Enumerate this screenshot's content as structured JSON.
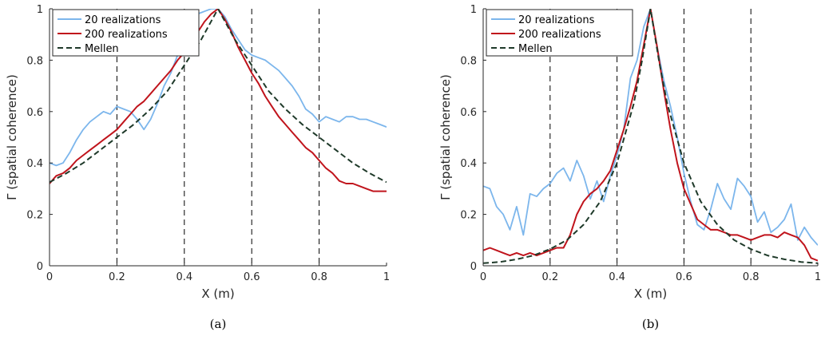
{
  "chart_data": [
    {
      "type": "line",
      "caption": "(a)",
      "xlabel": "X (m)",
      "ylabel": "Γ (spatial coherence)",
      "xlim": [
        0,
        1
      ],
      "ylim": [
        0,
        1
      ],
      "xticks": [
        "0",
        "0.2",
        "0.4",
        "0.6",
        "0.8",
        "1"
      ],
      "yticks": [
        "0",
        "0.2",
        "0.4",
        "0.6",
        "0.8",
        "1"
      ],
      "grid": false,
      "legend_position": "top-left",
      "vlines": [
        0.2,
        0.4,
        0.6,
        0.8
      ],
      "series": [
        {
          "name": "20 realizations",
          "color": "#7cb6ec",
          "style": "solid",
          "x": [
            0,
            0.02,
            0.04,
            0.06,
            0.08,
            0.1,
            0.12,
            0.14,
            0.16,
            0.18,
            0.2,
            0.22,
            0.24,
            0.26,
            0.28,
            0.3,
            0.32,
            0.34,
            0.36,
            0.38,
            0.4,
            0.42,
            0.44,
            0.46,
            0.48,
            0.5,
            0.52,
            0.54,
            0.56,
            0.58,
            0.6,
            0.62,
            0.64,
            0.66,
            0.68,
            0.7,
            0.72,
            0.74,
            0.76,
            0.78,
            0.8,
            0.82,
            0.84,
            0.86,
            0.88,
            0.9,
            0.92,
            0.94,
            0.96,
            0.98,
            1
          ],
          "y": [
            0.4,
            0.39,
            0.4,
            0.44,
            0.49,
            0.53,
            0.56,
            0.58,
            0.6,
            0.59,
            0.62,
            0.61,
            0.6,
            0.57,
            0.53,
            0.57,
            0.63,
            0.7,
            0.75,
            0.82,
            0.86,
            0.92,
            0.98,
            0.99,
            1.0,
            1.0,
            0.97,
            0.92,
            0.88,
            0.84,
            0.82,
            0.81,
            0.8,
            0.78,
            0.76,
            0.73,
            0.7,
            0.66,
            0.61,
            0.59,
            0.56,
            0.58,
            0.57,
            0.56,
            0.58,
            0.58,
            0.57,
            0.57,
            0.56,
            0.55,
            0.54
          ]
        },
        {
          "name": "200 realizations",
          "color": "#c0141c",
          "style": "solid",
          "x": [
            0,
            0.02,
            0.04,
            0.06,
            0.08,
            0.1,
            0.12,
            0.14,
            0.16,
            0.18,
            0.2,
            0.22,
            0.24,
            0.26,
            0.28,
            0.3,
            0.32,
            0.34,
            0.36,
            0.38,
            0.4,
            0.42,
            0.44,
            0.46,
            0.48,
            0.5,
            0.52,
            0.54,
            0.56,
            0.58,
            0.6,
            0.62,
            0.64,
            0.66,
            0.68,
            0.7,
            0.72,
            0.74,
            0.76,
            0.78,
            0.8,
            0.82,
            0.84,
            0.86,
            0.88,
            0.9,
            0.92,
            0.94,
            0.96,
            0.98,
            1
          ],
          "y": [
            0.32,
            0.35,
            0.36,
            0.38,
            0.41,
            0.43,
            0.45,
            0.47,
            0.49,
            0.51,
            0.53,
            0.56,
            0.59,
            0.62,
            0.64,
            0.67,
            0.7,
            0.73,
            0.76,
            0.8,
            0.83,
            0.87,
            0.91,
            0.95,
            0.98,
            1.0,
            0.96,
            0.91,
            0.85,
            0.8,
            0.75,
            0.71,
            0.66,
            0.62,
            0.58,
            0.55,
            0.52,
            0.49,
            0.46,
            0.44,
            0.41,
            0.38,
            0.36,
            0.33,
            0.32,
            0.32,
            0.31,
            0.3,
            0.29,
            0.29,
            0.29
          ]
        },
        {
          "name": "Mellen",
          "color": "#1f3a2a",
          "style": "dashed",
          "x": [
            0,
            0.05,
            0.1,
            0.15,
            0.2,
            0.25,
            0.3,
            0.35,
            0.4,
            0.45,
            0.5,
            0.55,
            0.6,
            0.65,
            0.7,
            0.75,
            0.8,
            0.85,
            0.9,
            0.95,
            1
          ],
          "y": [
            0.325,
            0.36,
            0.4,
            0.45,
            0.5,
            0.55,
            0.61,
            0.68,
            0.78,
            0.88,
            1.0,
            0.88,
            0.78,
            0.68,
            0.61,
            0.55,
            0.5,
            0.45,
            0.4,
            0.36,
            0.325
          ]
        }
      ]
    },
    {
      "type": "line",
      "caption": "(b)",
      "xlabel": "X (m)",
      "ylabel": "Γ (spatial coherence)",
      "xlim": [
        0,
        1
      ],
      "ylim": [
        0,
        1
      ],
      "xticks": [
        "0",
        "0.2",
        "0.4",
        "0.6",
        "0.8",
        "1"
      ],
      "yticks": [
        "0",
        "0.2",
        "0.4",
        "0.6",
        "0.8",
        "1"
      ],
      "grid": false,
      "legend_position": "top-left",
      "vlines": [
        0.2,
        0.4,
        0.6,
        0.8
      ],
      "series": [
        {
          "name": "20 realizations",
          "color": "#7cb6ec",
          "style": "solid",
          "x": [
            0,
            0.02,
            0.04,
            0.06,
            0.08,
            0.1,
            0.12,
            0.14,
            0.16,
            0.18,
            0.2,
            0.22,
            0.24,
            0.26,
            0.28,
            0.3,
            0.32,
            0.34,
            0.36,
            0.38,
            0.4,
            0.42,
            0.44,
            0.46,
            0.48,
            0.5,
            0.52,
            0.54,
            0.56,
            0.58,
            0.6,
            0.62,
            0.64,
            0.66,
            0.68,
            0.7,
            0.72,
            0.74,
            0.76,
            0.78,
            0.8,
            0.82,
            0.84,
            0.86,
            0.88,
            0.9,
            0.92,
            0.94,
            0.96,
            0.98,
            1
          ],
          "y": [
            0.31,
            0.3,
            0.23,
            0.2,
            0.14,
            0.23,
            0.12,
            0.28,
            0.27,
            0.3,
            0.32,
            0.36,
            0.38,
            0.33,
            0.41,
            0.35,
            0.26,
            0.33,
            0.25,
            0.35,
            0.43,
            0.53,
            0.73,
            0.8,
            0.93,
            1.0,
            0.85,
            0.72,
            0.62,
            0.5,
            0.36,
            0.25,
            0.16,
            0.14,
            0.22,
            0.32,
            0.26,
            0.22,
            0.34,
            0.31,
            0.27,
            0.17,
            0.21,
            0.13,
            0.15,
            0.18,
            0.24,
            0.1,
            0.15,
            0.11,
            0.08
          ]
        },
        {
          "name": "200 realizations",
          "color": "#c0141c",
          "style": "solid",
          "x": [
            0,
            0.02,
            0.04,
            0.06,
            0.08,
            0.1,
            0.12,
            0.14,
            0.16,
            0.18,
            0.2,
            0.22,
            0.24,
            0.26,
            0.28,
            0.3,
            0.32,
            0.34,
            0.36,
            0.38,
            0.4,
            0.42,
            0.44,
            0.46,
            0.48,
            0.5,
            0.52,
            0.54,
            0.56,
            0.58,
            0.6,
            0.62,
            0.64,
            0.66,
            0.68,
            0.7,
            0.72,
            0.74,
            0.76,
            0.78,
            0.8,
            0.82,
            0.84,
            0.86,
            0.88,
            0.9,
            0.92,
            0.94,
            0.96,
            0.98,
            1
          ],
          "y": [
            0.06,
            0.07,
            0.06,
            0.05,
            0.04,
            0.05,
            0.04,
            0.05,
            0.04,
            0.05,
            0.06,
            0.07,
            0.07,
            0.12,
            0.2,
            0.25,
            0.28,
            0.3,
            0.33,
            0.37,
            0.45,
            0.53,
            0.62,
            0.72,
            0.86,
            1.0,
            0.85,
            0.68,
            0.53,
            0.4,
            0.3,
            0.24,
            0.18,
            0.16,
            0.14,
            0.14,
            0.13,
            0.12,
            0.12,
            0.11,
            0.1,
            0.11,
            0.12,
            0.12,
            0.11,
            0.13,
            0.12,
            0.11,
            0.08,
            0.03,
            0.02
          ]
        },
        {
          "name": "Mellen",
          "color": "#1f3a2a",
          "style": "dashed",
          "x": [
            0,
            0.05,
            0.1,
            0.15,
            0.2,
            0.25,
            0.3,
            0.35,
            0.4,
            0.45,
            0.475,
            0.5,
            0.525,
            0.55,
            0.6,
            0.65,
            0.7,
            0.75,
            0.8,
            0.85,
            0.9,
            0.95,
            1
          ],
          "y": [
            0.01,
            0.015,
            0.025,
            0.04,
            0.065,
            0.1,
            0.16,
            0.25,
            0.4,
            0.63,
            0.8,
            1.0,
            0.8,
            0.63,
            0.4,
            0.25,
            0.16,
            0.1,
            0.065,
            0.04,
            0.025,
            0.015,
            0.01
          ]
        }
      ]
    }
  ]
}
